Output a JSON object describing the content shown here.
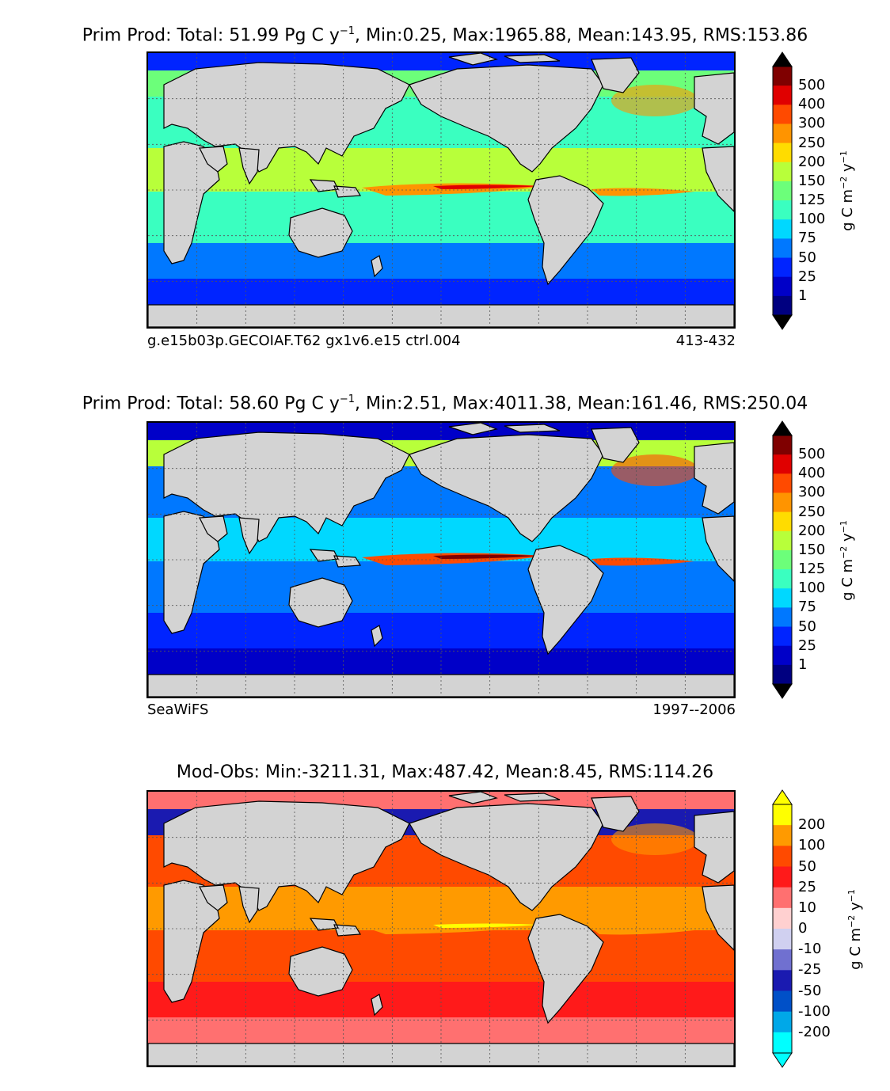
{
  "panels": [
    {
      "title_prefix": "Prim Prod: Total: 51.99 Pg C y",
      "title_exp": "−1",
      "title_suffix": ", Min:0.25, Max:1965.88, Mean:143.95, RMS:153.86",
      "caption_left": "g.e15b03p.GECOIAF.T62 gx1v6.e15 ctrl.004",
      "caption_right": "413-432",
      "cbar_ticks": [
        "500",
        "400",
        "300",
        "250",
        "200",
        "150",
        "125",
        "100",
        "75",
        "50",
        "25",
        "1"
      ],
      "cbar_colors": [
        "#7f0000",
        "#e00000",
        "#ff4a00",
        "#ff9400",
        "#ffdc00",
        "#b8ff3a",
        "#6cff7a",
        "#3affc0",
        "#00d8ff",
        "#0078ff",
        "#0024ff",
        "#0000c8",
        "#000080"
      ],
      "unit_prefix": "g C m",
      "unit_exp1": "−2",
      "unit_mid": " y",
      "unit_exp2": "−1",
      "ocean_colors": {
        "equator": "#b8ff3a",
        "subtropics": "#3affc0",
        "north": "#6cff7a",
        "south": "#0078ff",
        "polar": "#0024ff",
        "upwelling": "#ff9400",
        "core": "#e00000"
      }
    },
    {
      "title_prefix": "Prim Prod: Total: 58.60 Pg C y",
      "title_exp": "−1",
      "title_suffix": ", Min:2.51, Max:4011.38, Mean:161.46, RMS:250.04",
      "caption_left": "SeaWiFS",
      "caption_right": "1997--2006",
      "cbar_ticks": [
        "500",
        "400",
        "300",
        "250",
        "200",
        "150",
        "125",
        "100",
        "75",
        "50",
        "25",
        "1"
      ],
      "cbar_colors": [
        "#7f0000",
        "#e00000",
        "#ff4a00",
        "#ff9400",
        "#ffdc00",
        "#b8ff3a",
        "#6cff7a",
        "#3affc0",
        "#00d8ff",
        "#0078ff",
        "#0024ff",
        "#0000c8",
        "#000080"
      ],
      "unit_prefix": "g C m",
      "unit_exp1": "−2",
      "unit_mid": " y",
      "unit_exp2": "−1",
      "ocean_colors": {
        "equator": "#00d8ff",
        "subtropics": "#0078ff",
        "north": "#b8ff3a",
        "south": "#0024ff",
        "polar": "#0000c8",
        "upwelling": "#ff4a00",
        "core": "#7f0000"
      }
    },
    {
      "title_prefix": "Mod-Obs: Min:-3211.31, Max:487.42, Mean:8.45, RMS:114.26",
      "title_exp": "",
      "title_suffix": "",
      "caption_left": "",
      "caption_right": "",
      "cbar_ticks": [
        "200",
        "100",
        "50",
        "25",
        "10",
        "0",
        "-10",
        "-25",
        "-50",
        "-100",
        "-200"
      ],
      "cbar_colors": [
        "#ffff00",
        "#ff9a00",
        "#ff4a00",
        "#ff1a1a",
        "#ff7070",
        "#ffd0d0",
        "#d0d0f0",
        "#7070d0",
        "#1a1ab0",
        "#0050c8",
        "#00a8e8",
        "#00ffff"
      ],
      "unit_prefix": "g C m",
      "unit_exp1": "−2",
      "unit_mid": " y",
      "unit_exp2": "−1",
      "ocean_colors": {
        "equator": "#ff9a00",
        "subtropics": "#ff4a00",
        "north": "#1a1ab0",
        "south": "#ff1a1a",
        "polar": "#ff7070",
        "upwelling": "#ff9a00",
        "core": "#ffff00"
      }
    }
  ]
}
